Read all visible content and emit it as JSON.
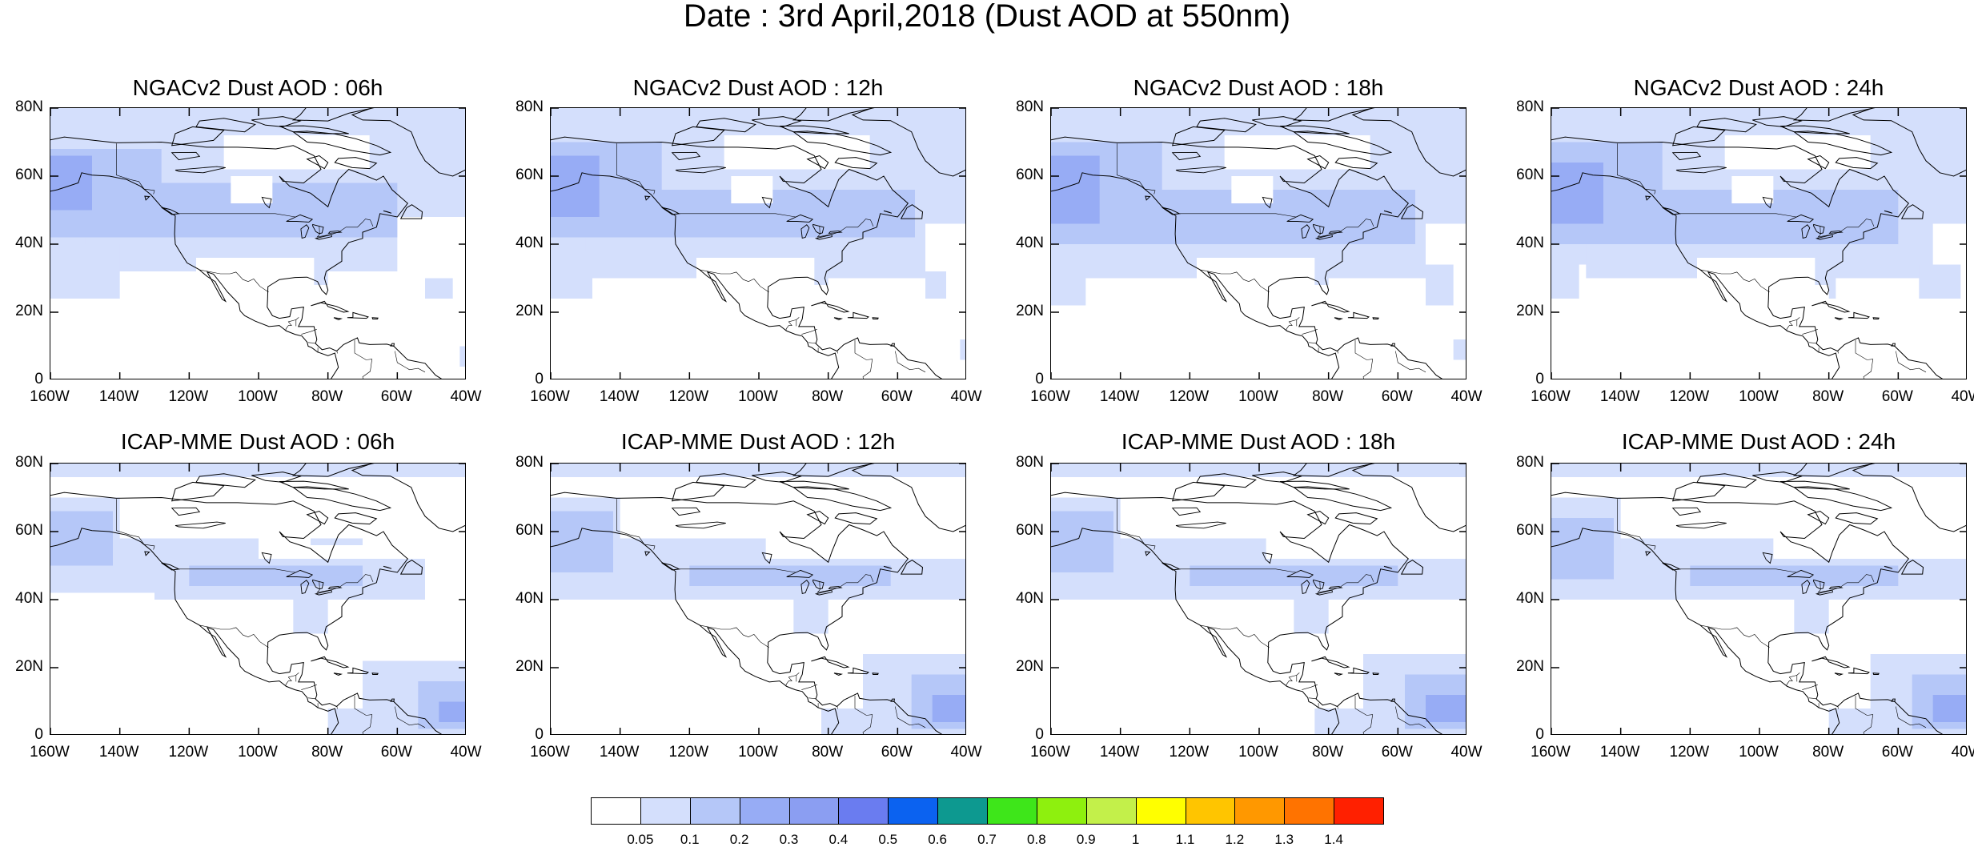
{
  "title": "Date : 3rd April,2018 (Dust AOD at 550nm)",
  "map_extent": {
    "lon_min": -160,
    "lon_max": -40,
    "lat_min": 0,
    "lat_max": 80
  },
  "panels": [
    {
      "title": "NGACv2 Dust AOD : 06h",
      "model": "NGACv2",
      "hour": "06h"
    },
    {
      "title": "NGACv2 Dust AOD : 12h",
      "model": "NGACv2",
      "hour": "12h"
    },
    {
      "title": "NGACv2 Dust AOD : 18h",
      "model": "NGACv2",
      "hour": "18h"
    },
    {
      "title": "NGACv2 Dust AOD : 24h",
      "model": "NGACv2",
      "hour": "24h"
    },
    {
      "title": "ICAP-MME Dust AOD : 06h",
      "model": "ICAP-MME",
      "hour": "06h"
    },
    {
      "title": "ICAP-MME Dust AOD : 12h",
      "model": "ICAP-MME",
      "hour": "12h"
    },
    {
      "title": "ICAP-MME Dust AOD : 18h",
      "model": "ICAP-MME",
      "hour": "18h"
    },
    {
      "title": "ICAP-MME Dust AOD : 24h",
      "model": "ICAP-MME",
      "hour": "24h"
    }
  ],
  "y_ticks": [
    "80N",
    "60N",
    "40N",
    "20N",
    "0"
  ],
  "x_ticks": [
    "160W",
    "140W",
    "120W",
    "100W",
    "80W",
    "60W",
    "40W"
  ],
  "colorbar": {
    "levels": [
      "0.05",
      "0.1",
      "0.2",
      "0.3",
      "0.4",
      "0.5",
      "0.6",
      "0.7",
      "0.8",
      "0.9",
      "1",
      "1.1",
      "1.2",
      "1.3",
      "1.4"
    ],
    "colors": [
      "#ffffff",
      "#d4dffc",
      "#b5c7f8",
      "#97acf5",
      "#8b9ef2",
      "#6a7cf0",
      "#0b62f0",
      "#0d9990",
      "#3ee61a",
      "#8ef00e",
      "#c3f04a",
      "#ffff00",
      "#ffc500",
      "#ff9800",
      "#ff7300",
      "#ff2000"
    ]
  }
}
